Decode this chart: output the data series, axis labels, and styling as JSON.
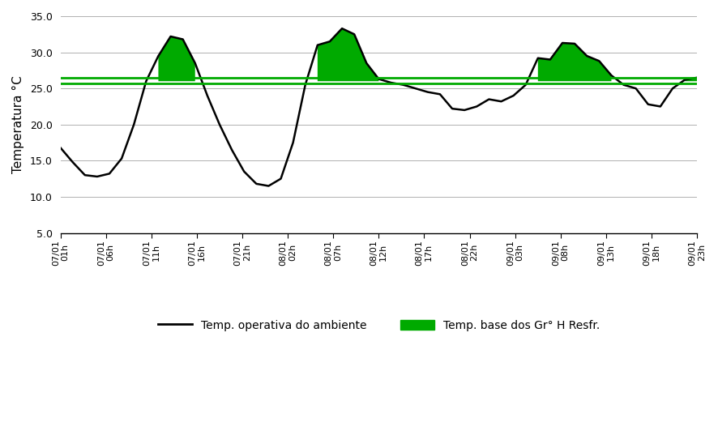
{
  "ylabel": "Temperatura °C",
  "ylim": [
    5.0,
    35.0
  ],
  "yticks": [
    5.0,
    10.0,
    15.0,
    20.0,
    25.0,
    30.0,
    35.0
  ],
  "ytick_labels": [
    "5.0",
    "10.0",
    "15.0",
    "20.0",
    "25.0",
    "30.0",
    "35.0"
  ],
  "base_temp": 26.0,
  "base_temp_upper": 26.5,
  "base_temp_lower": 25.7,
  "base_temp_color": "#00aa00",
  "line_color": "#000000",
  "fill_color": "#00aa00",
  "fill_alpha": 1.0,
  "xtick_labels": [
    "07/01\n01h",
    "07/01\n06h",
    "07/01\n11h",
    "07/01\n16h",
    "07/01\n21h",
    "08/01\n02h",
    "08/01\n07h",
    "08/01\n12h",
    "08/01\n17h",
    "08/01\n22h",
    "09/01\n03h",
    "09/01\n08h",
    "09/01\n13h",
    "09/01\n18h",
    "09/01\n23h"
  ],
  "temperatures": [
    16.8,
    14.8,
    13.0,
    12.8,
    13.2,
    15.3,
    20.0,
    26.0,
    29.5,
    32.2,
    31.8,
    28.5,
    24.0,
    20.0,
    16.5,
    13.5,
    11.8,
    11.5,
    12.5,
    17.5,
    25.5,
    31.0,
    31.5,
    33.3,
    32.5,
    28.5,
    26.3,
    25.8,
    25.5,
    25.0,
    24.5,
    24.2,
    22.2,
    22.0,
    22.5,
    23.5,
    23.2,
    24.0,
    25.5,
    29.2,
    29.0,
    31.3,
    31.2,
    29.5,
    28.8,
    26.8,
    25.5,
    25.0,
    22.8,
    22.5,
    25.0,
    26.2,
    26.5
  ],
  "legend_line_label": "Temp. operativa do ambiente",
  "legend_fill_label": "Temp. base dos Gr° H Resfr."
}
